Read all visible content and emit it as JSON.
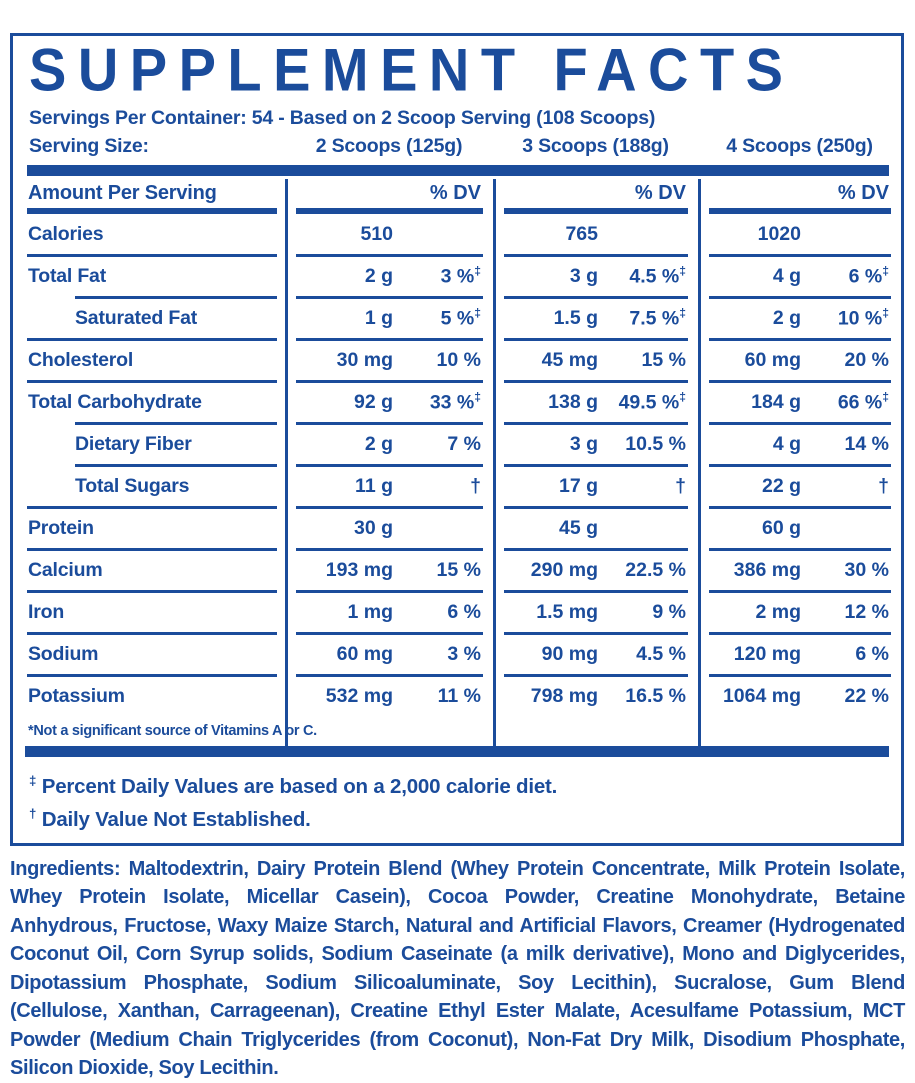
{
  "colors": {
    "brand_blue": "#1b4c9b",
    "background": "#ffffff"
  },
  "title": "SUPPLEMENT FACTS",
  "servings_line": "Servings Per Container: 54 - Based on 2 Scoop Serving (108 Scoops)",
  "serving_size": {
    "label": "Serving Size:",
    "columns": [
      "2 Scoops (125g)",
      "3 Scoops (188g)",
      "4 Scoops (250g)"
    ]
  },
  "table": {
    "header": {
      "label": "Amount Per Serving",
      "dv": "% DV"
    },
    "rows": [
      {
        "label": "Calories",
        "indent": false,
        "cols": [
          {
            "amount": "510",
            "dv": ""
          },
          {
            "amount": "765",
            "dv": ""
          },
          {
            "amount": "1020",
            "dv": ""
          }
        ]
      },
      {
        "label": "Total Fat",
        "indent": false,
        "cols": [
          {
            "amount": "2 g",
            "dv": "3 %‡"
          },
          {
            "amount": "3 g",
            "dv": "4.5 %‡"
          },
          {
            "amount": "4 g",
            "dv": "6 %‡"
          }
        ]
      },
      {
        "label": "Saturated Fat",
        "indent": true,
        "cols": [
          {
            "amount": "1 g",
            "dv": "5 %‡"
          },
          {
            "amount": "1.5 g",
            "dv": "7.5 %‡"
          },
          {
            "amount": "2 g",
            "dv": "10 %‡"
          }
        ]
      },
      {
        "label": "Cholesterol",
        "indent": false,
        "cols": [
          {
            "amount": "30 mg",
            "dv": "10 %"
          },
          {
            "amount": "45 mg",
            "dv": "15 %"
          },
          {
            "amount": "60 mg",
            "dv": "20 %"
          }
        ]
      },
      {
        "label": "Total Carbohydrate",
        "indent": false,
        "cols": [
          {
            "amount": "92 g",
            "dv": "33 %‡"
          },
          {
            "amount": "138 g",
            "dv": "49.5 %‡"
          },
          {
            "amount": "184 g",
            "dv": "66 %‡"
          }
        ]
      },
      {
        "label": "Dietary Fiber",
        "indent": true,
        "cols": [
          {
            "amount": "2 g",
            "dv": "7 %"
          },
          {
            "amount": "3 g",
            "dv": "10.5 %"
          },
          {
            "amount": "4 g",
            "dv": "14 %"
          }
        ]
      },
      {
        "label": "Total Sugars",
        "indent": true,
        "cols": [
          {
            "amount": "11 g",
            "dv": "†"
          },
          {
            "amount": "17 g",
            "dv": "†"
          },
          {
            "amount": "22 g",
            "dv": "†"
          }
        ]
      },
      {
        "label": "Protein",
        "indent": false,
        "cols": [
          {
            "amount": "30 g",
            "dv": ""
          },
          {
            "amount": "45 g",
            "dv": ""
          },
          {
            "amount": "60 g",
            "dv": ""
          }
        ]
      },
      {
        "label": "Calcium",
        "indent": false,
        "cols": [
          {
            "amount": "193 mg",
            "dv": "15 %"
          },
          {
            "amount": "290 mg",
            "dv": "22.5 %"
          },
          {
            "amount": "386 mg",
            "dv": "30 %"
          }
        ]
      },
      {
        "label": "Iron",
        "indent": false,
        "cols": [
          {
            "amount": "1 mg",
            "dv": "6 %"
          },
          {
            "amount": "1.5 mg",
            "dv": "9 %"
          },
          {
            "amount": "2 mg",
            "dv": "12 %"
          }
        ]
      },
      {
        "label": "Sodium",
        "indent": false,
        "cols": [
          {
            "amount": "60 mg",
            "dv": "3 %"
          },
          {
            "amount": "90 mg",
            "dv": "4.5 %"
          },
          {
            "amount": "120 mg",
            "dv": "6 %"
          }
        ]
      },
      {
        "label": "Potassium",
        "indent": false,
        "cols": [
          {
            "amount": "532 mg",
            "dv": "11 %"
          },
          {
            "amount": "798 mg",
            "dv": "16.5 %"
          },
          {
            "amount": "1064 mg",
            "dv": "22 %"
          }
        ]
      }
    ],
    "note": "*Not a significant source of Vitamins A or C."
  },
  "footnotes": [
    {
      "sym": "‡",
      "text": "Percent Daily Values are based on a 2,000 calorie diet."
    },
    {
      "sym": "†",
      "text": "Daily Value Not Established."
    }
  ],
  "ingredients": {
    "label": "Ingredients:",
    "text": "Maltodextrin, Dairy Protein Blend (Whey Protein Concentrate, Milk Protein Isolate, Whey Protein Isolate, Micellar Casein), Cocoa Powder, Creatine Monohydrate, Betaine Anhydrous, Fructose, Waxy Maize Starch, Natural and Artificial Flavors, Creamer (Hydrogenated Coconut Oil, Corn Syrup solids, Sodium Caseinate (a milk derivative), Mono and Diglycerides, Dipotassium Phosphate, Sodium Silicoaluminate, Soy Lecithin), Sucralose, Gum Blend (Cellulose, Xanthan, Carrageenan), Creatine Ethyl Ester Malate, Acesulfame Potassium, MCT Powder (Medium Chain Triglycerides (from Coconut), Non-Fat Dry Milk, Disodium Phosphate, Silicon Dioxide, Soy Lecithin."
  }
}
